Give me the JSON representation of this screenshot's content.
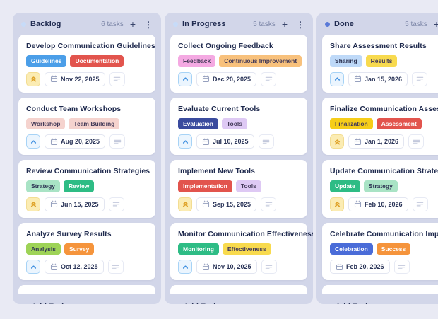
{
  "icons": {
    "plus": "+",
    "menu": "⋮"
  },
  "colors": {
    "page_bg": "#E9EAF4",
    "column_bg": "#D2D6E9",
    "card_bg": "#FFFFFF",
    "title_text": "#1F2A4E",
    "muted_text": "#7E88A9",
    "priority_high_bg": "#FBECB3",
    "priority_high_fg": "#DFA32A",
    "priority_medium_bg": "#EBF5FE",
    "priority_medium_fg": "#4090E0"
  },
  "board": {
    "columns": [
      {
        "title": "Backlog",
        "count": "6 tasks",
        "dot_color": "#C7DBF8",
        "add_task_label": "Add Task",
        "cards": [
          {
            "title": "Develop Communication Guidelines",
            "tags": [
              {
                "label": "Guidelines",
                "bg": "#4B9EE8",
                "fg": "#FFFFFF"
              },
              {
                "label": "Documentation",
                "bg": "#E2544D",
                "fg": "#FFFFFF"
              }
            ],
            "priority": "high",
            "due_date": "Nov 22, 2025"
          },
          {
            "title": "Conduct Team Workshops",
            "tags": [
              {
                "label": "Workshop",
                "bg": "#F5D3CE",
                "fg": "#433A58"
              },
              {
                "label": "Team Building",
                "bg": "#F5D3CE",
                "fg": "#433A58"
              }
            ],
            "priority": "medium",
            "due_date": "Aug 20, 2025"
          },
          {
            "title": "Review Communication Strategies",
            "tags": [
              {
                "label": "Strategy",
                "bg": "#A9E3C5",
                "fg": "#2F3554"
              },
              {
                "label": "Review",
                "bg": "#2EBC85",
                "fg": "#FFFFFF"
              }
            ],
            "priority": "high",
            "due_date": "Jun 15, 2025"
          },
          {
            "title": "Analyze Survey Results",
            "tags": [
              {
                "label": "Analysis",
                "bg": "#9ED357",
                "fg": "#2F3554"
              },
              {
                "label": "Survey",
                "bg": "#F5943C",
                "fg": "#FFFFFF"
              }
            ],
            "priority": "medium",
            "due_date": "Oct 12, 2025"
          }
        ]
      },
      {
        "title": "In Progress",
        "count": "5 tasks",
        "dot_color": "#C7DBF8",
        "add_task_label": "Add Task",
        "cards": [
          {
            "title": "Collect Ongoing Feedback",
            "tags": [
              {
                "label": "Feedback",
                "bg": "#F4A9E2",
                "fg": "#433A58"
              },
              {
                "label": "Continuous Improvement",
                "bg": "#F8C17C",
                "fg": "#433A58"
              }
            ],
            "priority": "medium",
            "due_date": "Dec 20, 2025"
          },
          {
            "title": "Evaluate Current Tools",
            "tags": [
              {
                "label": "Evaluation",
                "bg": "#3A4B9E",
                "fg": "#FFFFFF"
              },
              {
                "label": "Tools",
                "bg": "#DEC9F4",
                "fg": "#433A58"
              }
            ],
            "priority": "medium",
            "due_date": "Jul 10, 2025"
          },
          {
            "title": "Implement New Tools",
            "tags": [
              {
                "label": "Implementation",
                "bg": "#E2544D",
                "fg": "#FFFFFF"
              },
              {
                "label": "Tools",
                "bg": "#DEC9F4",
                "fg": "#433A58"
              }
            ],
            "priority": "high",
            "due_date": "Sep 15, 2025"
          },
          {
            "title": "Monitor Communication Effectiveness",
            "tags": [
              {
                "label": "Monitoring",
                "bg": "#2EBC85",
                "fg": "#FFFFFF"
              },
              {
                "label": "Effectiveness",
                "bg": "#F8DA4E",
                "fg": "#433A58"
              }
            ],
            "priority": "medium",
            "due_date": "Nov 10, 2025"
          }
        ]
      },
      {
        "title": "Done",
        "count": "5 tasks",
        "dot_color": "#5A7AD8",
        "add_task_label": "Add Task",
        "cards": [
          {
            "title": "Share Assessment Results",
            "tags": [
              {
                "label": "Sharing",
                "bg": "#BED9F8",
                "fg": "#2F3554"
              },
              {
                "label": "Results",
                "bg": "#F8DA4E",
                "fg": "#433A58"
              }
            ],
            "priority": "medium",
            "due_date": "Jan 15, 2026"
          },
          {
            "title": "Finalize Communication Assessment",
            "tags": [
              {
                "label": "Finalization",
                "bg": "#F6CD19",
                "fg": "#433A58"
              },
              {
                "label": "Assessment",
                "bg": "#E2544D",
                "fg": "#FFFFFF"
              }
            ],
            "priority": "high",
            "due_date": "Jan 1, 2026"
          },
          {
            "title": "Update Communication Strategy",
            "tags": [
              {
                "label": "Update",
                "bg": "#2EBC85",
                "fg": "#FFFFFF"
              },
              {
                "label": "Strategy",
                "bg": "#A9E3C5",
                "fg": "#2F3554"
              }
            ],
            "priority": "high",
            "due_date": "Feb 10, 2026"
          },
          {
            "title": "Celebrate Communication Improvement",
            "tags": [
              {
                "label": "Celebration",
                "bg": "#4A6CD8",
                "fg": "#FFFFFF"
              },
              {
                "label": "Success",
                "bg": "#F5943C",
                "fg": "#FFFFFF"
              }
            ],
            "priority": "none",
            "due_date": "Feb 20, 2026"
          }
        ]
      }
    ]
  }
}
